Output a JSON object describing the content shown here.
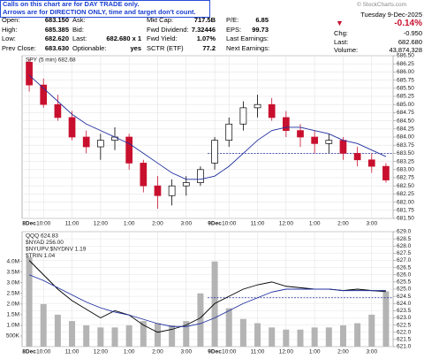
{
  "notice": [
    "Calls on this chart are for DAY TRADE only.",
    "Arrows are for DIRECTION ONLY, time and target don't count."
  ],
  "watermark": "© StockCharts.com",
  "quote": {
    "rows": [
      [
        {
          "label": "Open:",
          "value": "683.150"
        },
        {
          "label": "Ask:"
        },
        {
          "label": "Mkt Cap:",
          "value": "717.5B"
        },
        {
          "label": "P/E:",
          "value": "6.85"
        }
      ],
      [
        {
          "label": "High:",
          "value": "685.385"
        },
        {
          "label": "Bid:"
        },
        {
          "label": "Fwd Dividend:",
          "value": "7.32446"
        },
        {
          "label": "EPS:",
          "value": "99.73"
        }
      ],
      [
        {
          "label": "Low:",
          "value": "682.620"
        },
        {
          "label": "Last:",
          "value": "682.680 x 1"
        },
        {
          "label": "Fwd Yield:",
          "value": "1.07%"
        },
        {
          "label": "Last Earnings:"
        }
      ],
      [
        {
          "label": "Prev Close:",
          "value": "683.630"
        },
        {
          "label": "Optionable:",
          "value": "yes"
        },
        {
          "label": "SCTR (ETF)",
          "value": "77.2"
        },
        {
          "label": "Next Earnings:"
        }
      ]
    ],
    "date": "Tuesday 9-Dec-2025",
    "change_pct": "-0.14%",
    "right": [
      {
        "label": "Chg:",
        "value": "-0.950"
      },
      {
        "label": "Last:",
        "value": "682.680"
      },
      {
        "label": "Volume:",
        "value": "43,874,328"
      }
    ]
  },
  "chart_data": [
    {
      "type": "candlestick",
      "title": "SPY (5 min) 682.68",
      "categories": [
        "8Dec",
        "10:00",
        null,
        "11:00",
        null,
        "12:00",
        null,
        "1:00",
        null,
        "2:00",
        null,
        "3:00",
        null,
        "9Dec",
        "10:00",
        null,
        "11:00",
        null,
        "12:00",
        null,
        "1:00",
        null,
        "2:00",
        null,
        "3:00",
        null
      ],
      "open": [
        686.3,
        685.6,
        685.0,
        684.6,
        684.0,
        683.7,
        683.9,
        684.0,
        683.2,
        682.5,
        682.2,
        682.5,
        682.6,
        683.2,
        683.9,
        684.4,
        684.9,
        685.0,
        684.6,
        684.2,
        684.0,
        683.8,
        683.9,
        683.5,
        683.3,
        683.1
      ],
      "high": [
        686.4,
        685.8,
        685.3,
        684.8,
        684.2,
        684.1,
        684.3,
        684.1,
        683.3,
        682.8,
        682.7,
        682.8,
        683.1,
        684.0,
        684.6,
        685.1,
        685.3,
        685.2,
        684.8,
        684.4,
        684.2,
        684.1,
        684.0,
        683.7,
        683.5,
        683.2
      ],
      "low": [
        685.4,
        684.9,
        684.5,
        683.9,
        683.5,
        683.3,
        683.6,
        683.0,
        682.3,
        681.8,
        681.9,
        682.2,
        682.5,
        683.0,
        683.7,
        684.2,
        684.6,
        684.5,
        684.0,
        683.7,
        683.5,
        683.5,
        683.3,
        683.1,
        682.9,
        682.6
      ],
      "close": [
        685.6,
        685.0,
        684.6,
        684.0,
        683.7,
        683.9,
        684.0,
        683.2,
        682.5,
        682.2,
        682.5,
        682.6,
        683.0,
        683.9,
        684.4,
        684.9,
        685.0,
        684.6,
        684.2,
        684.0,
        683.8,
        683.9,
        683.5,
        683.3,
        683.1,
        682.68
      ],
      "colors": {
        "up": "#000000",
        "down": "#c8102e"
      },
      "ma": {
        "color": "#1f2f9e",
        "values": [
          685.9,
          685.5,
          685.1,
          684.7,
          684.4,
          684.2,
          684.0,
          683.8,
          683.5,
          683.2,
          682.9,
          682.7,
          682.7,
          682.8,
          683.1,
          683.5,
          683.9,
          684.2,
          684.3,
          684.3,
          684.2,
          684.1,
          683.9,
          683.8,
          683.6,
          683.4
        ]
      },
      "reference": {
        "value": 683.5,
        "color": "#1f2f9e"
      },
      "ylim": [
        681.5,
        686.5
      ],
      "yticks": [
        {
          "value": 681.5,
          "label": "681.50"
        },
        681.75,
        {
          "value": 682,
          "label": "682.00"
        },
        682.25,
        {
          "value": 682.5,
          "label": "682.50"
        },
        682.75,
        {
          "value": 683,
          "label": "683.00"
        },
        683.25,
        {
          "value": 683.5,
          "label": "683.50"
        },
        683.75,
        {
          "value": 684,
          "label": "684.00"
        },
        684.25,
        {
          "value": 684.5,
          "label": "684.50"
        },
        684.75,
        {
          "value": 685,
          "label": "685.00"
        },
        685.25,
        {
          "value": 685.5,
          "label": "685.50"
        },
        685.75,
        {
          "value": 686,
          "label": "686.00"
        },
        686.25,
        {
          "value": 686.5,
          "label": "686.50"
        }
      ],
      "grid": true
    },
    {
      "type": "volume-line",
      "legend": [
        "QQQ 624.83",
        "$NYAD 256.00",
        "$NYUPV:$NYDNV 1.19",
        "$TRIN 1.04"
      ],
      "categories": [
        "8Dec",
        "10:00",
        null,
        "11:00",
        null,
        "12:00",
        null,
        "1:00",
        null,
        "2:00",
        null,
        "3:00",
        null,
        "9Dec",
        "10:00",
        null,
        "11:00",
        null,
        "12:00",
        null,
        "1:00",
        null,
        "2:00",
        null,
        "3:00",
        null
      ],
      "volume": {
        "color": "#b4b4b4",
        "values": [
          4200000,
          2000000,
          1500000,
          1200000,
          1000000,
          900000,
          900000,
          1000000,
          1200000,
          1100000,
          1000000,
          1200000,
          2500000,
          4000000,
          1800000,
          1300000,
          1100000,
          900000,
          800000,
          800000,
          900000,
          900000,
          1000000,
          1100000,
          1500000,
          2600000
        ]
      },
      "series": [
        {
          "color": "#000000",
          "axis": "y2",
          "values": [
            627.0,
            626.0,
            625.0,
            624.2,
            623.6,
            623.0,
            623.5,
            623.2,
            622.5,
            622.0,
            622.2,
            622.5,
            623.0,
            624.0,
            624.5,
            625.0,
            625.3,
            625.5,
            625.2,
            625.1,
            625.0,
            625.0,
            624.9,
            625.0,
            624.9,
            624.83
          ]
        },
        {
          "color": "#1f2f9e",
          "axis": "y2",
          "values": [
            626.0,
            625.6,
            625.1,
            624.6,
            624.1,
            623.7,
            623.4,
            623.2,
            622.9,
            622.6,
            622.4,
            622.4,
            622.6,
            623.0,
            623.5,
            624.0,
            624.4,
            624.8,
            625.0,
            625.0,
            625.0,
            625.0,
            624.9,
            624.9,
            624.9,
            624.9
          ]
        }
      ],
      "reference": {
        "value": 624.4,
        "color": "#1f2f9e"
      },
      "ylim": [
        0,
        5400000
      ],
      "yticks": [
        {
          "value": 500000,
          "label": "500K"
        },
        {
          "value": 1000000,
          "label": "1.0M"
        },
        {
          "value": 1500000,
          "label": "1.5M"
        },
        {
          "value": 2000000,
          "label": "2.0M"
        },
        {
          "value": 2500000,
          "label": "2.5M"
        },
        {
          "value": 3000000,
          "label": "3.0M"
        },
        {
          "value": 3500000,
          "label": "3.5M"
        },
        {
          "value": 4000000,
          "label": "4.0M"
        }
      ],
      "y2lim": [
        621,
        629
      ],
      "y2ticks": [
        {
          "value": 621,
          "label": "621.0"
        },
        621.5,
        {
          "value": 622,
          "label": "622.0"
        },
        622.5,
        {
          "value": 623,
          "label": "623.0"
        },
        623.5,
        {
          "value": 624,
          "label": "624.0"
        },
        624.5,
        {
          "value": 625,
          "label": "625.0"
        },
        625.5,
        {
          "value": 626,
          "label": "626.0"
        },
        626.5,
        {
          "value": 627,
          "label": "627.0"
        },
        627.5,
        {
          "value": 628,
          "label": "628.0"
        },
        628.5,
        {
          "value": 629,
          "label": "629.0"
        }
      ],
      "grid": true
    }
  ]
}
